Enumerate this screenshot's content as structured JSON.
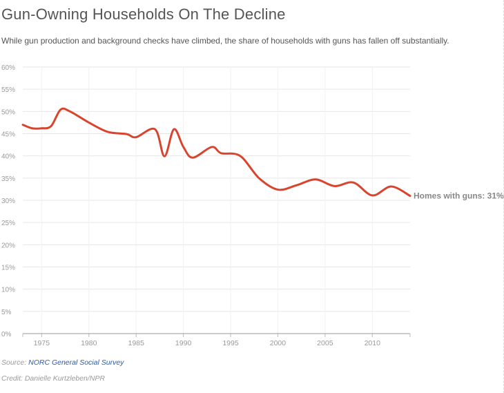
{
  "header": {
    "title": "Gun-Owning Households On The Decline",
    "subtitle": "While gun production and background checks have climbed, the share of households with guns has fallen off substantially."
  },
  "footer": {
    "source_label": "Source: ",
    "source_link": "NORC General Social Survey",
    "credit": "Credit: Danielle Kurtzleben/NPR"
  },
  "colors": {
    "line": "#d9442e",
    "grid": "#e6e6e6",
    "axis_text": "#999999",
    "label_text": "#888888"
  },
  "chart_data": {
    "type": "line",
    "title": "Gun-Owning Households On The Decline",
    "xlabel": "",
    "ylabel": "",
    "xlim": [
      1973,
      2014
    ],
    "ylim": [
      0,
      60
    ],
    "y_ticks": [
      0,
      5,
      10,
      15,
      20,
      25,
      30,
      35,
      40,
      45,
      50,
      55,
      60
    ],
    "y_tick_labels": [
      "0%",
      "5%",
      "10%",
      "15%",
      "20%",
      "25%",
      "30%",
      "35%",
      "40%",
      "45%",
      "50%",
      "55%",
      "60%"
    ],
    "x_ticks": [
      1975,
      1980,
      1985,
      1990,
      1995,
      2000,
      2005,
      2010
    ],
    "x_tick_labels": [
      "1975",
      "1980",
      "1985",
      "1990",
      "1995",
      "2000",
      "2005",
      "2010"
    ],
    "grid": true,
    "series": [
      {
        "name": "Homes with guns",
        "x": [
          1973,
          1974,
          1975,
          1976,
          1977,
          1978,
          1980,
          1982,
          1984,
          1985,
          1987,
          1988,
          1989,
          1990,
          1991,
          1993,
          1994,
          1996,
          1998,
          2000,
          2002,
          2004,
          2006,
          2008,
          2010,
          2012,
          2014
        ],
        "values": [
          47.0,
          46.2,
          46.2,
          46.7,
          50.4,
          50.0,
          47.5,
          45.4,
          44.9,
          44.2,
          46.0,
          39.9,
          46.0,
          42.0,
          39.6,
          42.0,
          40.6,
          40.0,
          35.0,
          32.4,
          33.4,
          34.7,
          33.2,
          34.0,
          31.1,
          33.1,
          31.0
        ]
      }
    ],
    "annotations": [
      {
        "text": "Homes with guns: 31%",
        "x": 2014,
        "y": 31.0
      }
    ]
  }
}
